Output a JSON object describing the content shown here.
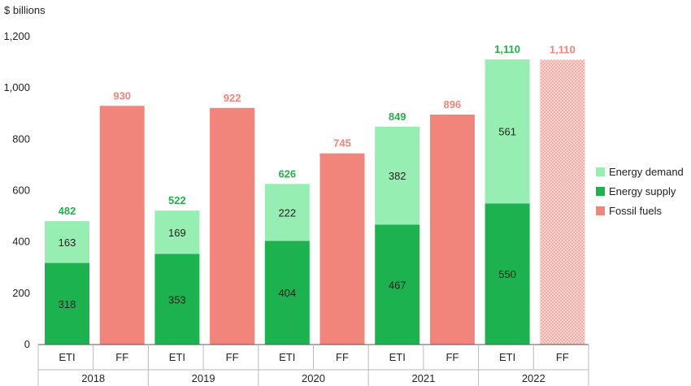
{
  "chart_data": {
    "type": "bar",
    "ylabel": "$ billions",
    "ylim": [
      0,
      1200
    ],
    "yticks": [
      0,
      200,
      400,
      600,
      800,
      1000,
      1200
    ],
    "ytick_labels": [
      "0",
      "200",
      "400",
      "600",
      "800",
      "1,000",
      "1,200"
    ],
    "years": [
      "2018",
      "2019",
      "2020",
      "2021",
      "2022"
    ],
    "bar_labels": [
      "ETI",
      "FF"
    ],
    "eti": {
      "energy_supply": [
        318,
        353,
        404,
        467,
        550
      ],
      "energy_demand": [
        163,
        169,
        222,
        382,
        561
      ],
      "totals": [
        "482",
        "522",
        "626",
        "849",
        "1,110"
      ]
    },
    "ff": {
      "values": [
        930,
        922,
        745,
        896,
        1110
      ],
      "labels": [
        "930",
        "922",
        "745",
        "896",
        "1,110"
      ],
      "hatched": [
        false,
        false,
        false,
        false,
        true
      ]
    },
    "legend": [
      {
        "name": "Energy demand",
        "color": "#97EEB2"
      },
      {
        "name": "Energy supply",
        "color": "#1CB24F"
      },
      {
        "name": "Fossil fuels",
        "color": "#F2857B"
      }
    ],
    "colors": {
      "energy_supply": "#1CB24F",
      "energy_demand": "#97EEB2",
      "fossil_fuels": "#F2857B",
      "eti_total_text": "#22B14C",
      "ff_total_text": "#F2857B"
    },
    "grid": false,
    "legend_position": "right"
  }
}
